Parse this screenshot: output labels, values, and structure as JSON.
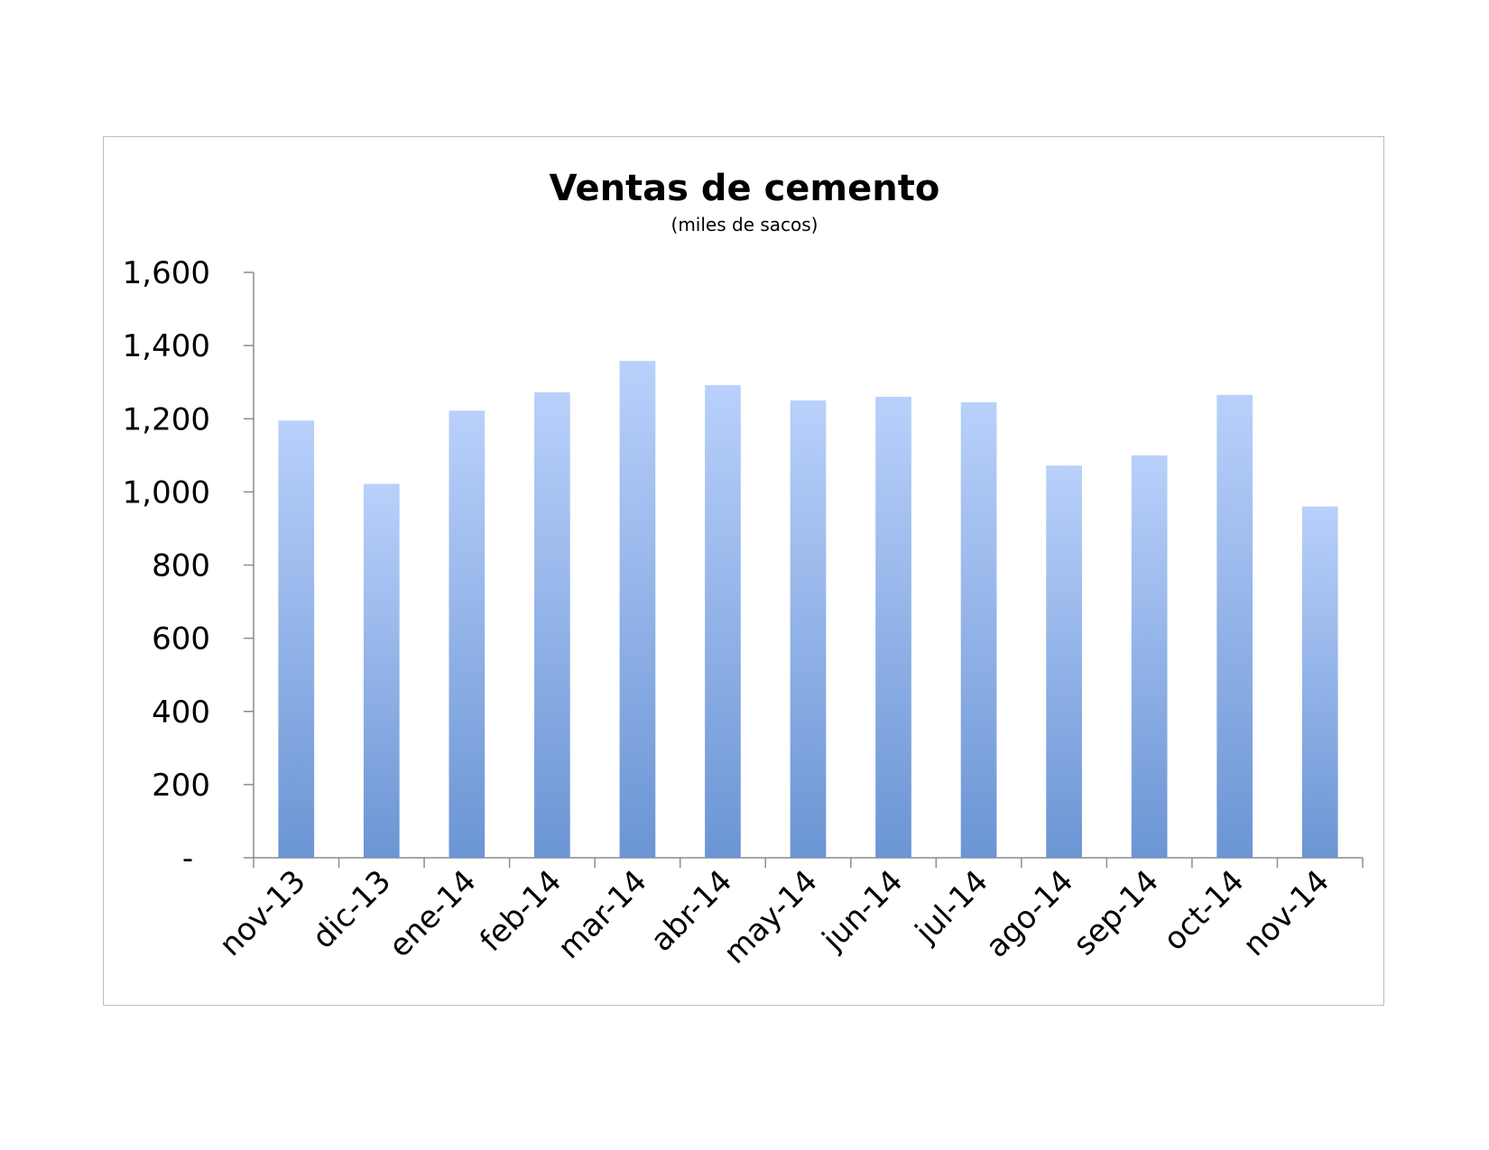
{
  "chart_data": {
    "type": "bar",
    "title": "Ventas de cemento",
    "subtitle": "(miles de sacos)",
    "xlabel": "",
    "ylabel": "",
    "categories": [
      "nov-13",
      "dic-13",
      "ene-14",
      "feb-14",
      "mar-14",
      "abr-14",
      "may-14",
      "jun-14",
      "jul-14",
      "ago-14",
      "sep-14",
      "oct-14",
      "nov-14"
    ],
    "values": [
      1195,
      1022,
      1222,
      1272,
      1358,
      1292,
      1250,
      1260,
      1245,
      1072,
      1100,
      1265,
      960
    ],
    "ylim": [
      0,
      1600
    ],
    "yticks": [
      0,
      200,
      400,
      600,
      800,
      1000,
      1200,
      1400,
      1600
    ],
    "ytick_labels": [
      "-",
      "200",
      "400",
      "600",
      "800",
      "1,000",
      "1,200",
      "1,400",
      "1,600"
    ],
    "grid": false,
    "legend": "none",
    "colors": {
      "bar_top": "#b9d0fb",
      "bar_bottom": "#6b95d4",
      "axis": "#8c8c8c",
      "frame": "#bdbdbd"
    }
  }
}
